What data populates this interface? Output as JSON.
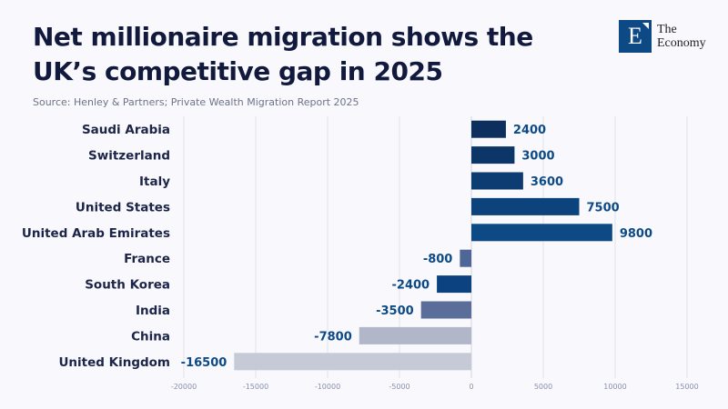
{
  "header": {
    "title": "Net millionaire migration shows the UK’s competitive gap in 2025",
    "source": "Source: Henley & Partners; Private Wealth Migration Report 2025"
  },
  "logo": {
    "letter": "E",
    "line1": "The",
    "line2": "Economy"
  },
  "chart_data": {
    "type": "bar",
    "orientation": "horizontal",
    "title": "Net millionaire migration shows the UK’s competitive gap in 2025",
    "subtitle": "Source: Henley & Partners; Private Wealth Migration Report 2025",
    "xlabel": "",
    "ylabel": "",
    "xlim": [
      -20000,
      15000
    ],
    "xticks": [
      -20000,
      -15000,
      -10000,
      -5000,
      0,
      5000,
      10000,
      15000
    ],
    "grid": true,
    "categories": [
      "Saudi Arabia",
      "Switzerland",
      "Italy",
      "United States",
      "United Arab Emirates",
      "France",
      "South Korea",
      "India",
      "China",
      "United Kingdom"
    ],
    "values": [
      2400,
      3000,
      3600,
      7500,
      9800,
      -800,
      -2400,
      -3500,
      -7800,
      -16500
    ],
    "colors": [
      "#0d2f5e",
      "#0d3668",
      "#0d3c72",
      "#0d437c",
      "#0d4a85",
      "#4e6796",
      "#0d4280",
      "#5b6e99",
      "#b1b7c9",
      "#c6cad6"
    ],
    "label_color": "#0d4a85"
  }
}
